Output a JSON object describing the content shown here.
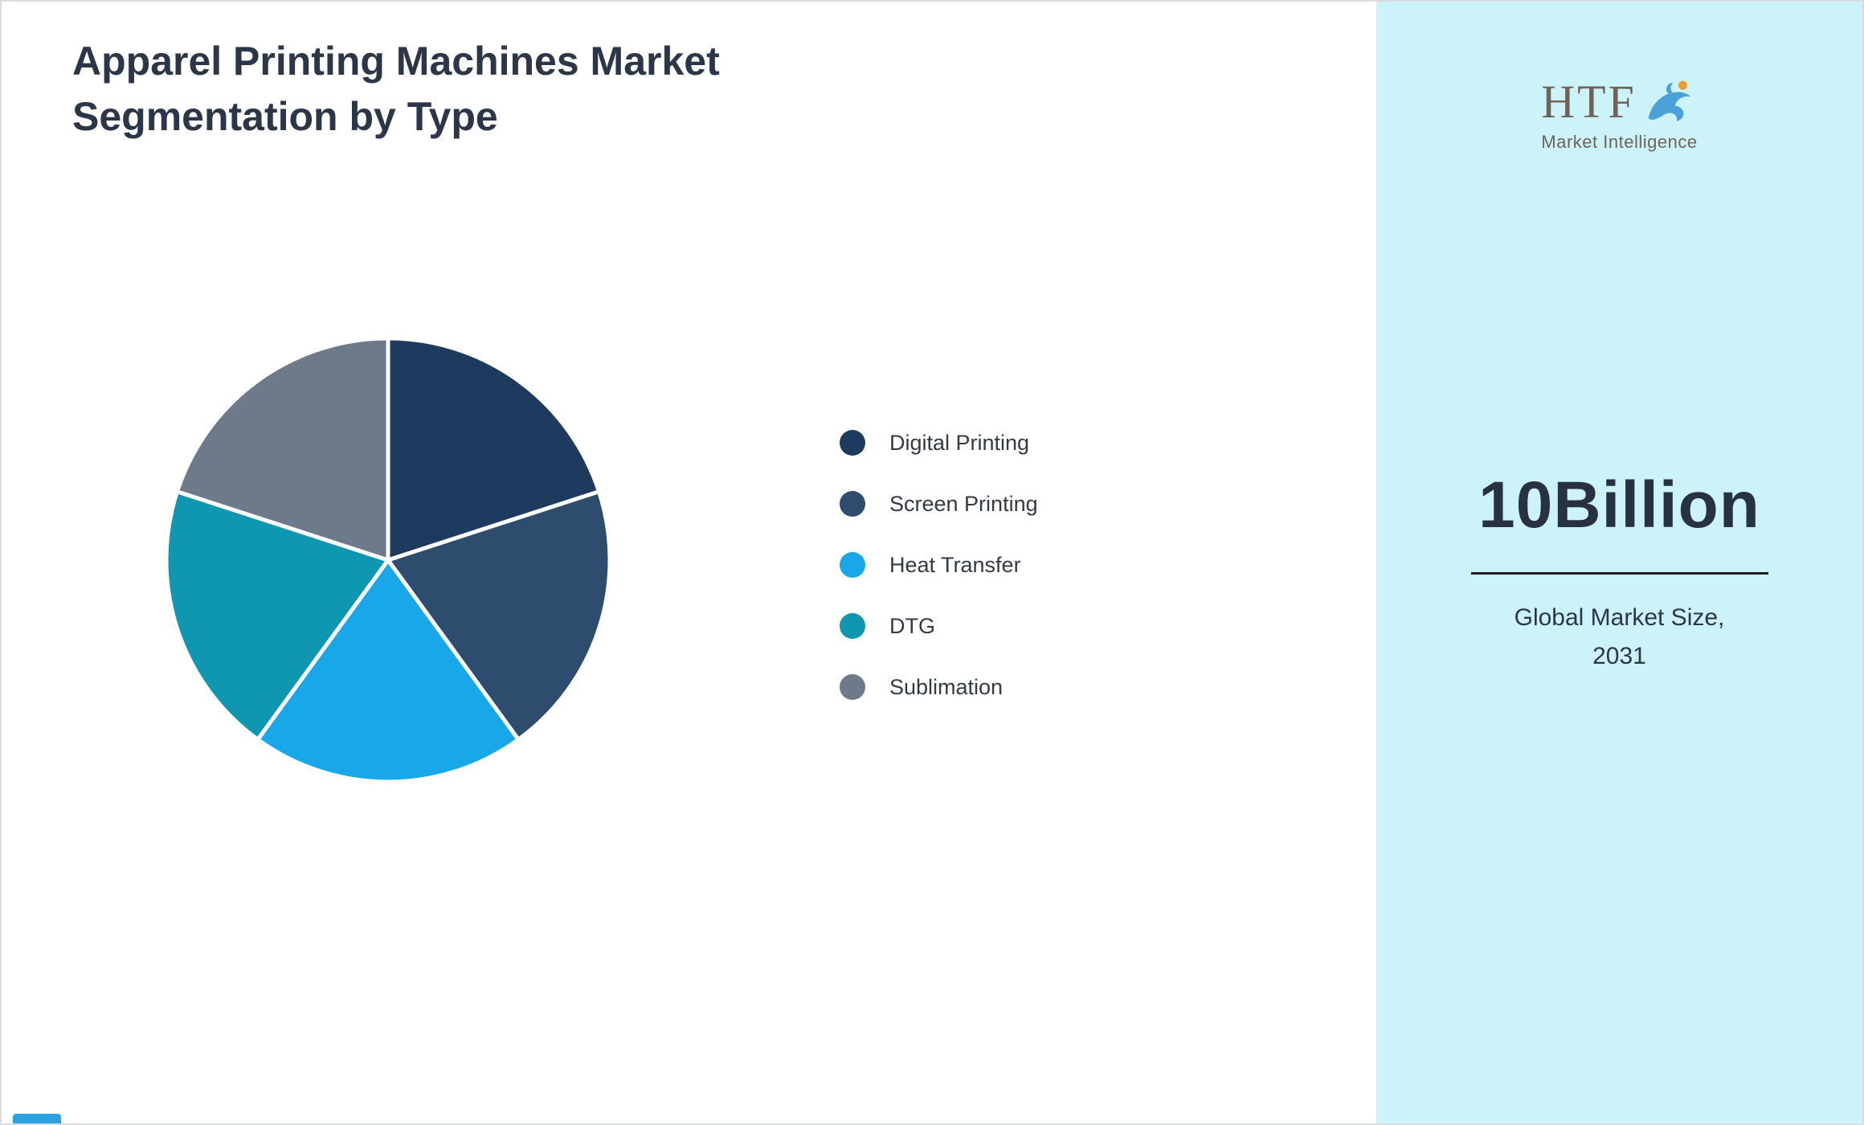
{
  "page": {
    "title_line1": "Apparel Printing Machines Market",
    "title_line2": "Segmentation by Type"
  },
  "chart_data": {
    "type": "pie",
    "title": "Apparel Printing Machines Market Segmentation by Type",
    "labels": [
      "Digital Printing",
      "Screen Printing",
      "Heat Transfer",
      "DTG",
      "Sublimation"
    ],
    "values": [
      20,
      20,
      20,
      20,
      20
    ],
    "colors": [
      "#1f3a5f",
      "#2e4d6e",
      "#18a8ea",
      "#0f97b2",
      "#6e7a8a"
    ],
    "start_angle_deg": 0,
    "direction": "clockwise",
    "legend_position": "right",
    "slice_gap_color": "#ffffff"
  },
  "sidebar": {
    "background": "#cdf3fa",
    "logo": {
      "text": "HTF",
      "subtext": "Market Intelligence",
      "dolphin_color": "#4aa0d8",
      "accent_color": "#f39c2c"
    },
    "market_size_value": "10Billion",
    "market_size_label_line1": "Global Market Size,",
    "market_size_label_line2": "2031"
  }
}
